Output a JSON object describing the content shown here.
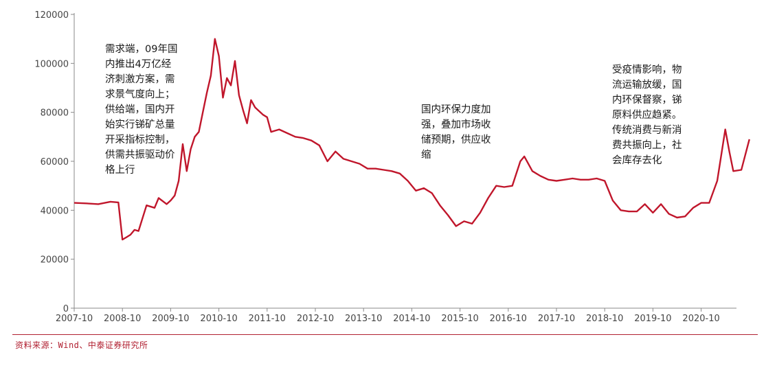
{
  "chart_data": {
    "type": "line",
    "title": "",
    "xlabel": "",
    "ylabel": "",
    "ylim": [
      0,
      120000
    ],
    "yticks": [
      "0",
      "20000",
      "40000",
      "60000",
      "80000",
      "100000",
      "120000"
    ],
    "xticks": [
      "2007-10",
      "2008-10",
      "2009-10",
      "2010-10",
      "2011-10",
      "2012-10",
      "2013-10",
      "2014-10",
      "2015-10",
      "2016-10",
      "2017-10",
      "2018-10",
      "2019-10",
      "2020-10"
    ],
    "grid": false,
    "color": "#c0162b",
    "series": [
      {
        "x": [
          "2007-10",
          "2008-01",
          "2008-04",
          "2008-07",
          "2008-09",
          "2008-10",
          "2008-11",
          "2008-12",
          "2009-01",
          "2009-02",
          "2009-04",
          "2009-06",
          "2009-07",
          "2009-09",
          "2009-10",
          "2009-11",
          "2009-12",
          "2010-01",
          "2010-02",
          "2010-03",
          "2010-04",
          "2010-05",
          "2010-06",
          "2010-07",
          "2010-08",
          "2010-09",
          "2010-10",
          "2010-11",
          "2010-12",
          "2011-01",
          "2011-02",
          "2011-03",
          "2011-04",
          "2011-05",
          "2011-06",
          "2011-07",
          "2011-08",
          "2011-09",
          "2011-10",
          "2011-11",
          "2011-12",
          "2012-01",
          "2012-03",
          "2012-05",
          "2012-07",
          "2012-09",
          "2012-11",
          "2013-01",
          "2013-03",
          "2013-05",
          "2013-07",
          "2013-09",
          "2013-11",
          "2014-01",
          "2014-03",
          "2014-05",
          "2014-07",
          "2014-09",
          "2014-11",
          "2015-01",
          "2015-03",
          "2015-05",
          "2015-07",
          "2015-09",
          "2015-11",
          "2016-01",
          "2016-03",
          "2016-05",
          "2016-07",
          "2016-09",
          "2016-11",
          "2017-01",
          "2017-02",
          "2017-04",
          "2017-06",
          "2017-08",
          "2017-10",
          "2017-12",
          "2018-02",
          "2018-04",
          "2018-06",
          "2018-08",
          "2018-10",
          "2018-12",
          "2019-02",
          "2019-04",
          "2019-06",
          "2019-08",
          "2019-10",
          "2019-12",
          "2020-02",
          "2020-04",
          "2020-06",
          "2020-08",
          "2020-10",
          "2020-12",
          "2021-02",
          "2021-04",
          "2021-05",
          "2021-06",
          "2021-08",
          "2021-10"
        ],
        "values": [
          43000,
          42800,
          42500,
          43500,
          43200,
          28000,
          29000,
          30000,
          32000,
          31500,
          42000,
          41000,
          45000,
          42500,
          44000,
          46000,
          52000,
          67000,
          56000,
          65000,
          70000,
          72000,
          80000,
          88000,
          95000,
          110000,
          103000,
          86000,
          94000,
          91000,
          101000,
          87000,
          81000,
          75500,
          85000,
          82000,
          80500,
          79000,
          78000,
          72000,
          72500,
          73000,
          71500,
          70000,
          69500,
          68500,
          66500,
          60000,
          64000,
          61000,
          60000,
          59000,
          57000,
          57000,
          56500,
          56000,
          55000,
          52000,
          48000,
          49000,
          47000,
          42000,
          38000,
          33500,
          35500,
          34500,
          39000,
          45000,
          50000,
          49500,
          50000,
          60000,
          62000,
          56000,
          54000,
          52500,
          52000,
          52500,
          53000,
          52500,
          52500,
          53000,
          52000,
          44000,
          40000,
          39500,
          39500,
          42500,
          39000,
          42500,
          38500,
          37000,
          37500,
          41000,
          43000,
          43000,
          52000,
          73000,
          64000,
          56000,
          56500,
          69000
        ]
      }
    ],
    "annotations": [
      [
        "需求端，09年国",
        "内推出4万亿经",
        "济刺激方案，需",
        "求景气度向上；",
        "供给端，国内开",
        "始实行锑矿总量",
        "开采指标控制，",
        "供需共振驱动价",
        "格上行"
      ],
      [
        "国内环保力度加",
        "强，叠加市场收",
        "储预期，供应收",
        "缩"
      ],
      [
        "受疫情影响，物",
        "流运输放缓，国",
        "内环保督察，锑",
        "原料供应趋紧。",
        "传统消费与新消",
        "费共振向上，社",
        "会库存去化"
      ]
    ]
  },
  "source": "资料来源：Wind、中泰证券研究所"
}
